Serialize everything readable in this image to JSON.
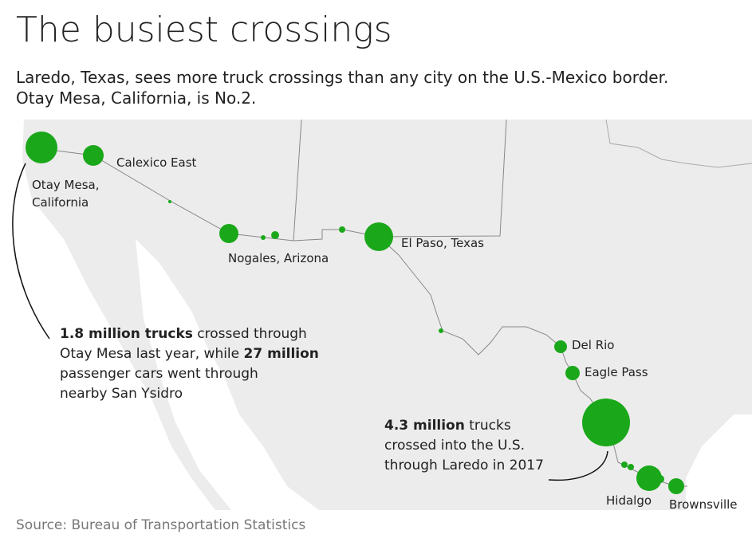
{
  "header": {
    "title": "The busiest crossings",
    "subtitle_lines": [
      "Laredo, Texas, sees more truck crossings than any city on the U.S.-Mexico border.",
      "Otay Mesa, California, is No.2."
    ]
  },
  "map": {
    "labels": [
      {
        "lines": [
          "Otay Mesa,",
          "California"
        ]
      },
      {
        "lines": [
          "Calexico East"
        ]
      },
      {
        "lines": [
          "Nogales, Arizona"
        ]
      },
      {
        "lines": [
          "El Paso, Texas"
        ]
      },
      {
        "lines": [
          "Del Rio"
        ]
      },
      {
        "lines": [
          "Eagle Pass"
        ]
      },
      {
        "lines": [
          "Hidalgo"
        ]
      },
      {
        "lines": [
          "Brownsville"
        ]
      }
    ],
    "annotations": [
      {
        "lines": [
          [
            {
              "text": "1.8 million trucks",
              "bold": true
            },
            {
              "text": " crossed through",
              "bold": false
            }
          ],
          [
            {
              "text": "Otay Mesa last year, while ",
              "bold": false
            },
            {
              "text": "27 million",
              "bold": true
            }
          ],
          [
            {
              "text": "passenger cars went through",
              "bold": false
            }
          ],
          [
            {
              "text": "nearby San Ysidro",
              "bold": false
            }
          ]
        ]
      },
      {
        "lines": [
          [
            {
              "text": "4.3 million",
              "bold": true
            },
            {
              "text": " trucks",
              "bold": false
            }
          ],
          [
            {
              "text": "crossed into the U.S.",
              "bold": false
            }
          ],
          [
            {
              "text": "through Laredo in 2017",
              "bold": false
            }
          ]
        ]
      }
    ]
  },
  "footer": {
    "source": "Source: Bureau of Transportation Statistics"
  }
}
